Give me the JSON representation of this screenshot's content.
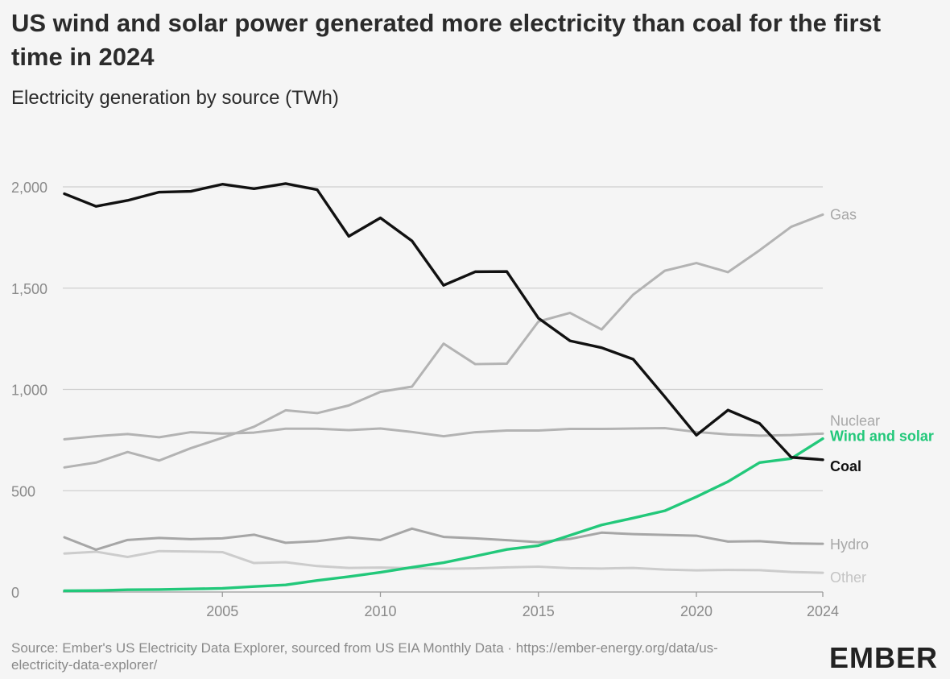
{
  "header": {
    "title": "US wind and solar power generated more electricity than coal for the first time in 2024",
    "subtitle": "Electricity generation by source (TWh)"
  },
  "footer": {
    "source": "Source: Ember's US Electricity Data Explorer, sourced from US EIA Monthly Data · https://ember-energy.org/data/us-electricity-data-explorer/",
    "logo_text": "EMBER"
  },
  "colors": {
    "coal": "#111111",
    "gas": "#b3b3b3",
    "nuclear": "#b3b3b3",
    "wind_solar": "#22c87a",
    "hydro": "#a6a6a6",
    "other": "#cccccc",
    "grid": "#cfcfcf",
    "axis_text": "#8a8a8a"
  },
  "chart_data": {
    "type": "line",
    "title": "US wind and solar power generated more electricity than coal for the first time in 2024",
    "subtitle": "Electricity generation by source (TWh)",
    "ylim": [
      0,
      2000
    ],
    "yticks": [
      0,
      500,
      1000,
      1500,
      2000
    ],
    "ytick_labels": [
      "0",
      "500",
      "1,000",
      "1,500",
      "2,000"
    ],
    "xlim": [
      2000,
      2024
    ],
    "xticks": [
      2005,
      2010,
      2015,
      2020,
      2024
    ],
    "grid": true,
    "legend": "direct labels at right end of lines",
    "x": [
      2000,
      2001,
      2002,
      2003,
      2004,
      2005,
      2006,
      2007,
      2008,
      2009,
      2010,
      2011,
      2012,
      2013,
      2014,
      2015,
      2016,
      2017,
      2018,
      2019,
      2020,
      2021,
      2022,
      2023,
      2024
    ],
    "series": [
      {
        "key": "coal",
        "name": "Coal",
        "values": [
          1966,
          1904,
          1933,
          1974,
          1978,
          2013,
          1991,
          2016,
          1986,
          1756,
          1847,
          1733,
          1514,
          1581,
          1582,
          1352,
          1240,
          1206,
          1149,
          964,
          774,
          898,
          832,
          665,
          653
        ]
      },
      {
        "key": "gas",
        "name": "Gas",
        "values": [
          615,
          639,
          691,
          649,
          710,
          761,
          816,
          897,
          883,
          921,
          988,
          1014,
          1226,
          1125,
          1127,
          1335,
          1378,
          1296,
          1468,
          1586,
          1624,
          1579,
          1687,
          1803,
          1863
        ]
      },
      {
        "key": "nuclear",
        "name": "Nuclear",
        "values": [
          754,
          769,
          780,
          764,
          789,
          782,
          787,
          806,
          806,
          799,
          807,
          790,
          769,
          789,
          797,
          797,
          805,
          805,
          807,
          809,
          790,
          778,
          772,
          775,
          782
        ]
      },
      {
        "key": "wind_solar",
        "name": "Wind and solar",
        "values": [
          6,
          7,
          11,
          12,
          15,
          18,
          27,
          35,
          57,
          76,
          97,
          122,
          145,
          177,
          210,
          229,
          280,
          331,
          365,
          401,
          470,
          545,
          639,
          659,
          757
        ]
      },
      {
        "key": "hydro",
        "name": "Hydro",
        "values": [
          270,
          209,
          257,
          267,
          261,
          265,
          283,
          243,
          251,
          270,
          257,
          313,
          272,
          265,
          256,
          246,
          262,
          293,
          286,
          282,
          278,
          249,
          251,
          240,
          238
        ]
      },
      {
        "key": "other",
        "name": "Other",
        "values": [
          190,
          199,
          173,
          202,
          200,
          197,
          143,
          147,
          128,
          119,
          121,
          118,
          115,
          117,
          122,
          125,
          118,
          116,
          119,
          111,
          107,
          109,
          108,
          99,
          95
        ]
      }
    ]
  }
}
